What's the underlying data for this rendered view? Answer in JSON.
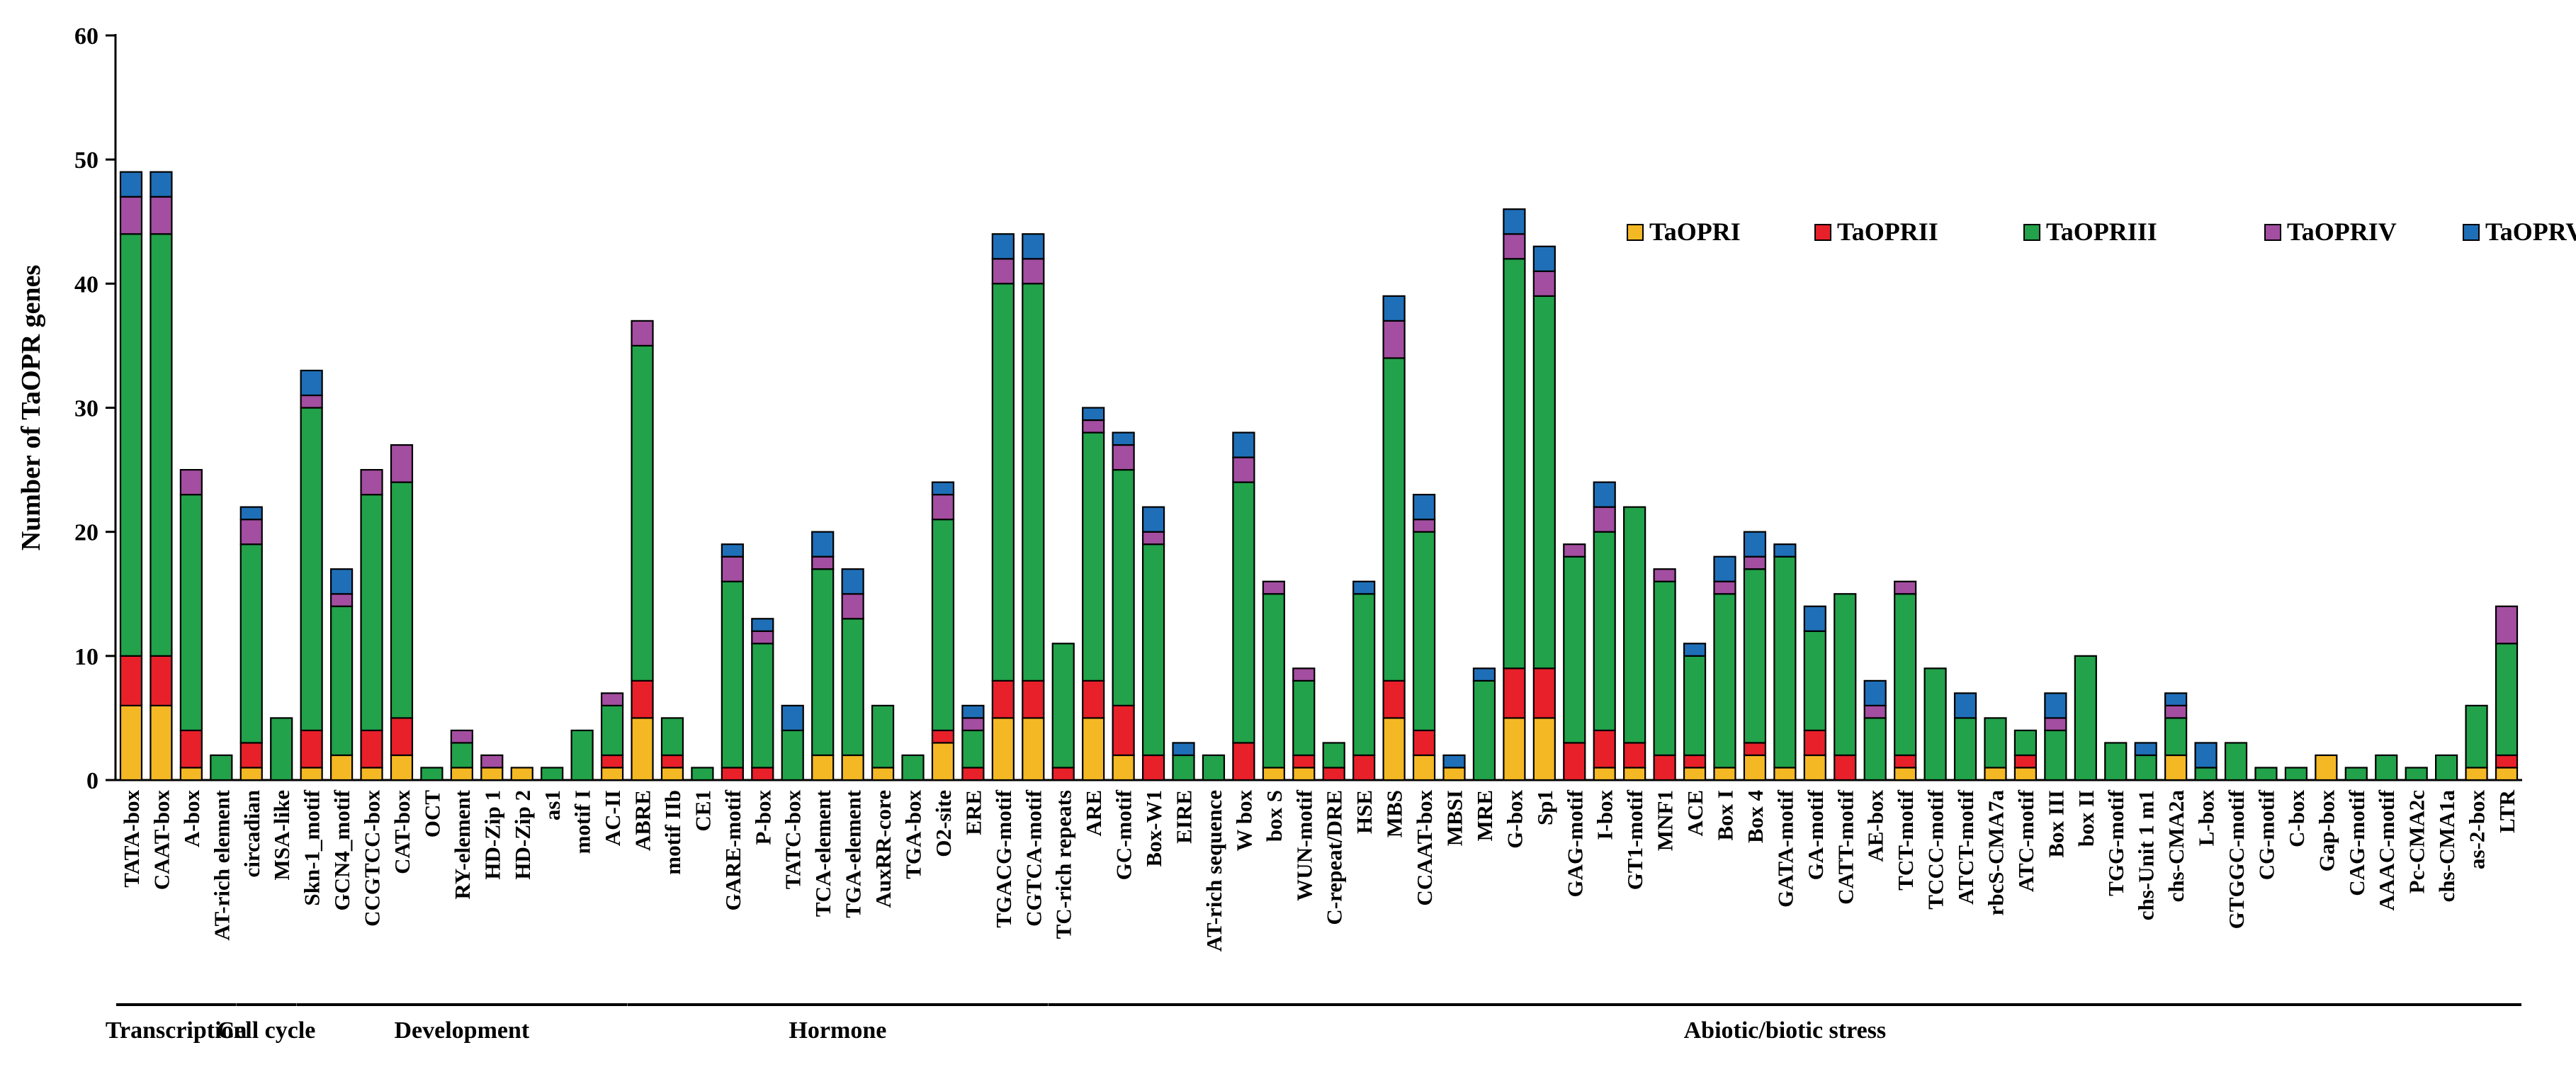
{
  "chart_data": {
    "type": "bar",
    "stacked": true,
    "title": "",
    "xlabel": "",
    "ylabel": "Number  of TaOPR  genes",
    "ylim": [
      0,
      60
    ],
    "yticks": [
      0,
      10,
      20,
      30,
      40,
      50,
      60
    ],
    "legend_position": "top-right",
    "categories": [
      "TATA-box",
      "CAAT-box",
      "A-box",
      "AT-rich element",
      "circadian",
      "MSA-like",
      "Skn-1_motif",
      "GCN4_motif",
      "CCGTCC-box",
      "CAT-box",
      "OCT",
      "RY-element",
      "HD-Zip 1",
      "HD-Zip 2",
      "as1",
      "motif I",
      "AC-II",
      "ABRE",
      "motif IIb",
      "CE1",
      "GARE-motif",
      "P-box",
      "TATC-box",
      "TCA-element",
      "TGA-element",
      "AuxRR-core",
      "TGA-box",
      "O2-site",
      "ERE",
      "TGACG-motif",
      "CGTCA-motif",
      "TC-rich repeats",
      "ARE",
      "GC-motif",
      "Box-W1",
      "EIRE",
      "AT-rich sequence",
      "W box",
      "box S",
      "WUN-motif",
      "C-repeat/DRE",
      "HSE",
      "MBS",
      "CCAAT-box",
      "MBSI",
      "MRE",
      "G-box",
      "Sp1",
      "GAG-motif",
      "I-box",
      "GT1-motif",
      "MNF1",
      "ACE",
      "Box I",
      "Box 4",
      "GATA-motif",
      "GA-motif",
      "CATT-motif",
      "AE-box",
      "TCT-motif",
      "TCCC-motif",
      "ATCT-motif",
      "rbcS-CMA7a",
      "ATC-motif",
      "Box III",
      "box II",
      "TGG-motif",
      "chs-Unit 1 m1",
      "chs-CMA2a",
      "L-box",
      "GTGGC-motif",
      "CG-motif",
      "C-box",
      "Gap-box",
      "CAG-motif",
      "AAAC-motif",
      "Pc-CMA2c",
      "chs-CMA1a",
      "as-2-box",
      "LTR"
    ],
    "series": [
      {
        "name": "TaOPRI",
        "color": "#F4B825",
        "values": [
          6,
          6,
          1,
          0,
          1,
          0,
          1,
          2,
          1,
          2,
          0,
          1,
          1,
          1,
          0,
          0,
          1,
          5,
          1,
          0,
          0,
          0,
          0,
          2,
          2,
          1,
          0,
          3,
          0,
          5,
          5,
          0,
          5,
          2,
          0,
          0,
          0,
          0,
          1,
          1,
          0,
          0,
          5,
          2,
          1,
          0,
          5,
          5,
          0,
          1,
          1,
          0,
          1,
          1,
          2,
          1,
          2,
          0,
          0,
          1,
          0,
          0,
          1,
          1,
          0,
          0,
          0,
          0,
          2,
          0,
          0,
          0,
          0,
          2,
          0,
          0,
          0,
          0,
          1,
          1
        ]
      },
      {
        "name": "TaOPRII",
        "color": "#E8202A",
        "values": [
          4,
          4,
          3,
          0,
          2,
          0,
          3,
          0,
          3,
          3,
          0,
          0,
          0,
          0,
          0,
          0,
          1,
          3,
          1,
          0,
          1,
          1,
          0,
          0,
          0,
          0,
          0,
          1,
          1,
          3,
          3,
          1,
          3,
          4,
          2,
          0,
          0,
          3,
          0,
          1,
          1,
          2,
          3,
          2,
          0,
          0,
          4,
          4,
          3,
          3,
          2,
          2,
          1,
          0,
          1,
          0,
          2,
          2,
          0,
          1,
          0,
          0,
          0,
          1,
          0,
          0,
          0,
          0,
          0,
          0,
          0,
          0,
          0,
          0,
          0,
          0,
          0,
          0,
          0,
          1
        ]
      },
      {
        "name": "TaOPRIII",
        "color": "#22A24A",
        "values": [
          34,
          34,
          19,
          2,
          16,
          5,
          26,
          12,
          19,
          19,
          1,
          2,
          0,
          0,
          1,
          4,
          4,
          27,
          3,
          1,
          15,
          10,
          4,
          15,
          11,
          5,
          2,
          17,
          3,
          32,
          32,
          10,
          20,
          19,
          17,
          2,
          2,
          21,
          14,
          6,
          2,
          13,
          26,
          16,
          0,
          8,
          33,
          30,
          15,
          16,
          19,
          14,
          8,
          14,
          14,
          17,
          8,
          13,
          5,
          13,
          9,
          5,
          4,
          2,
          4,
          10,
          3,
          2,
          3,
          1,
          3,
          1,
          1,
          0,
          1,
          2,
          1,
          2,
          5,
          9
        ]
      },
      {
        "name": "TaOPRIV",
        "color": "#A34EA0",
        "values": [
          3,
          3,
          2,
          0,
          2,
          0,
          1,
          1,
          2,
          3,
          0,
          1,
          1,
          0,
          0,
          0,
          1,
          2,
          0,
          0,
          2,
          1,
          0,
          1,
          2,
          0,
          0,
          2,
          1,
          2,
          2,
          0,
          1,
          2,
          1,
          0,
          0,
          2,
          1,
          1,
          0,
          0,
          3,
          1,
          0,
          0,
          2,
          2,
          1,
          2,
          0,
          1,
          0,
          1,
          1,
          0,
          0,
          0,
          1,
          1,
          0,
          0,
          0,
          0,
          1,
          0,
          0,
          0,
          1,
          0,
          0,
          0,
          0,
          0,
          0,
          0,
          0,
          0,
          0,
          3
        ]
      },
      {
        "name": "TaOPRV",
        "color": "#1F6FB8",
        "values": [
          2,
          2,
          0,
          0,
          1,
          0,
          2,
          2,
          0,
          0,
          0,
          0,
          0,
          0,
          0,
          0,
          0,
          0,
          0,
          0,
          1,
          1,
          2,
          2,
          2,
          0,
          0,
          1,
          1,
          2,
          2,
          0,
          1,
          1,
          2,
          1,
          0,
          2,
          0,
          0,
          0,
          1,
          2,
          2,
          1,
          1,
          2,
          2,
          0,
          2,
          0,
          0,
          1,
          2,
          2,
          1,
          2,
          0,
          2,
          0,
          0,
          2,
          0,
          0,
          2,
          0,
          0,
          1,
          1,
          2,
          0,
          0,
          0,
          0,
          0,
          0,
          0,
          0,
          0,
          0
        ]
      }
    ],
    "groups": [
      {
        "label": "Transcription",
        "start": 0,
        "end": 3
      },
      {
        "label": "Cell cycle",
        "start": 4,
        "end": 5
      },
      {
        "label": "Development",
        "start": 6,
        "end": 16
      },
      {
        "label": "Hormone",
        "start": 17,
        "end": 30
      },
      {
        "label": "Abiotic/biotic stress",
        "start": 31,
        "end": 79
      }
    ]
  }
}
